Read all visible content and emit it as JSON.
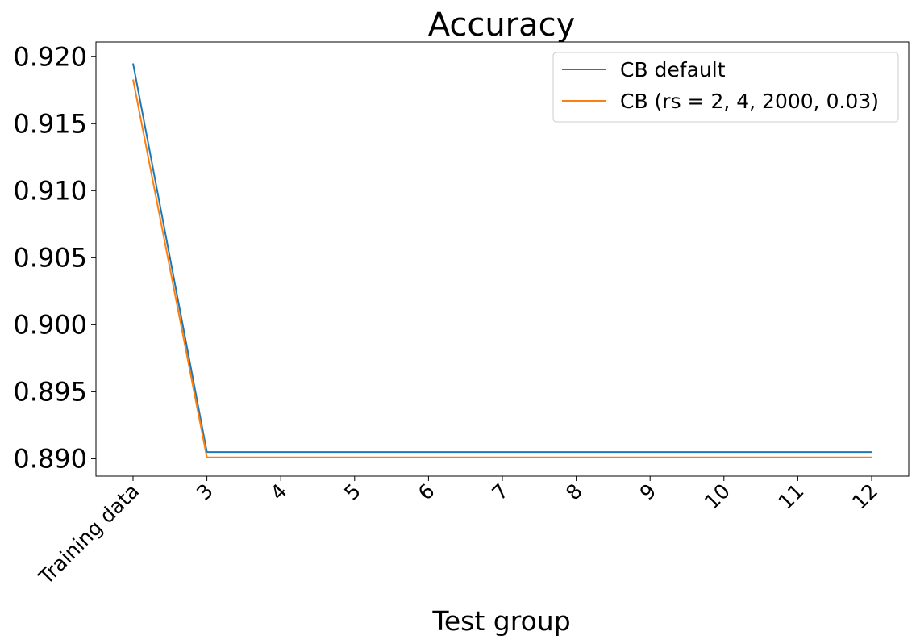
{
  "chart_data": {
    "type": "line",
    "title": "Accuracy",
    "xlabel": "Test group",
    "ylabel": "",
    "categories": [
      "Training data",
      "3",
      "4",
      "5",
      "6",
      "7",
      "8",
      "9",
      "10",
      "11",
      "12"
    ],
    "yticks": [
      "0.890",
      "0.895",
      "0.900",
      "0.905",
      "0.910",
      "0.915",
      "0.920"
    ],
    "ylim": [
      0.8887,
      0.9211
    ],
    "grid": false,
    "legend_position": "top-right",
    "series": [
      {
        "name": "CB default",
        "color": "#1f77b4",
        "values": [
          0.9195,
          0.8905,
          0.8905,
          0.8905,
          0.8905,
          0.8905,
          0.8905,
          0.8905,
          0.8905,
          0.8905,
          0.8905
        ]
      },
      {
        "name": "CB (rs = 2, 4, 2000, 0.03)",
        "color": "#ff7f0e",
        "values": [
          0.9183,
          0.8901,
          0.8901,
          0.8901,
          0.8901,
          0.8901,
          0.8901,
          0.8901,
          0.8901,
          0.8901,
          0.8901
        ]
      }
    ]
  }
}
